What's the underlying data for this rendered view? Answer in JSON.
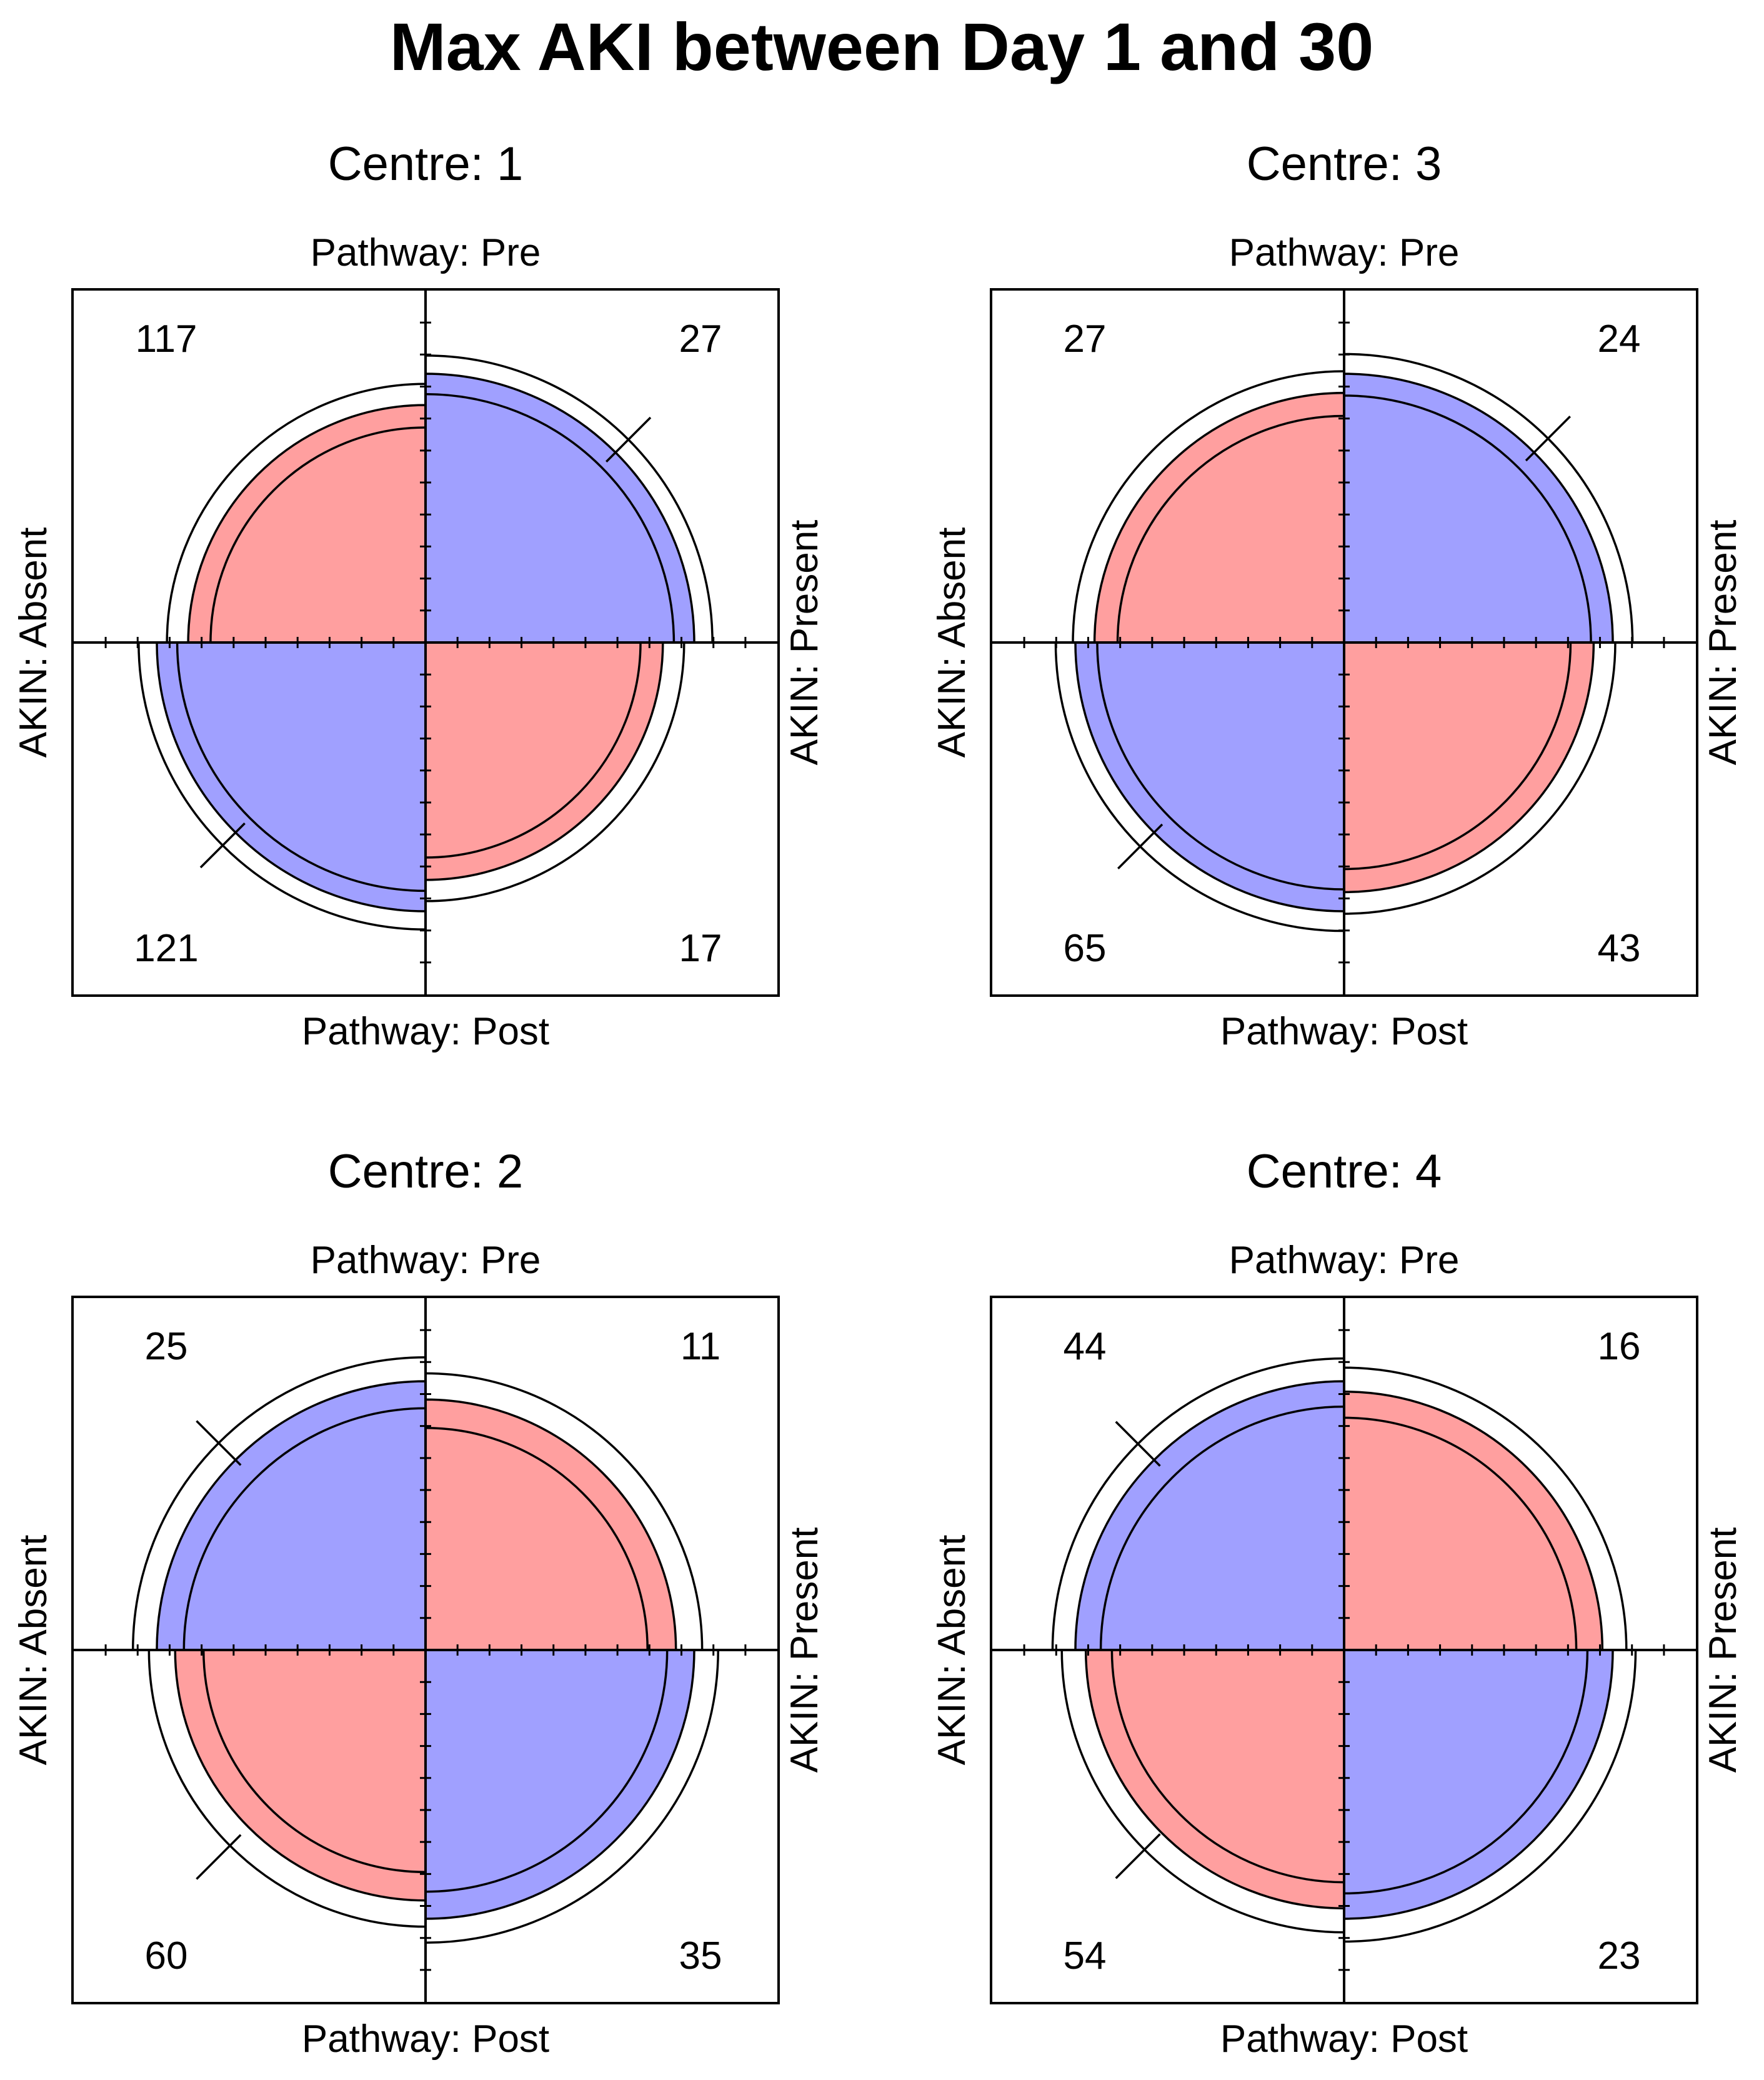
{
  "chart_data": {
    "type": "fourfold",
    "title": "Max AKI between Day 1 and 30",
    "row_variable": "Pathway",
    "column_variable": "AKIN",
    "top_label": "Pathway: Pre",
    "bottom_label": "Pathway: Post",
    "left_label": "AKIN: Absent",
    "right_label": "AKIN: Present",
    "colors": {
      "negative_association": "#ff9f9f",
      "positive_association": "#a0a0ff",
      "edge": "#000000"
    },
    "panels": [
      {
        "title": "Centre: 1",
        "counts": {
          "pre_absent": 117,
          "pre_present": 27,
          "post_absent": 121,
          "post_present": 17
        }
      },
      {
        "title": "Centre: 3",
        "counts": {
          "pre_absent": 27,
          "pre_present": 24,
          "post_absent": 65,
          "post_present": 43
        }
      },
      {
        "title": "Centre: 2",
        "counts": {
          "pre_absent": 25,
          "pre_present": 11,
          "post_absent": 60,
          "post_present": 35
        }
      },
      {
        "title": "Centre: 4",
        "counts": {
          "pre_absent": 44,
          "pre_present": 16,
          "post_absent": 54,
          "post_present": 23
        }
      }
    ]
  }
}
